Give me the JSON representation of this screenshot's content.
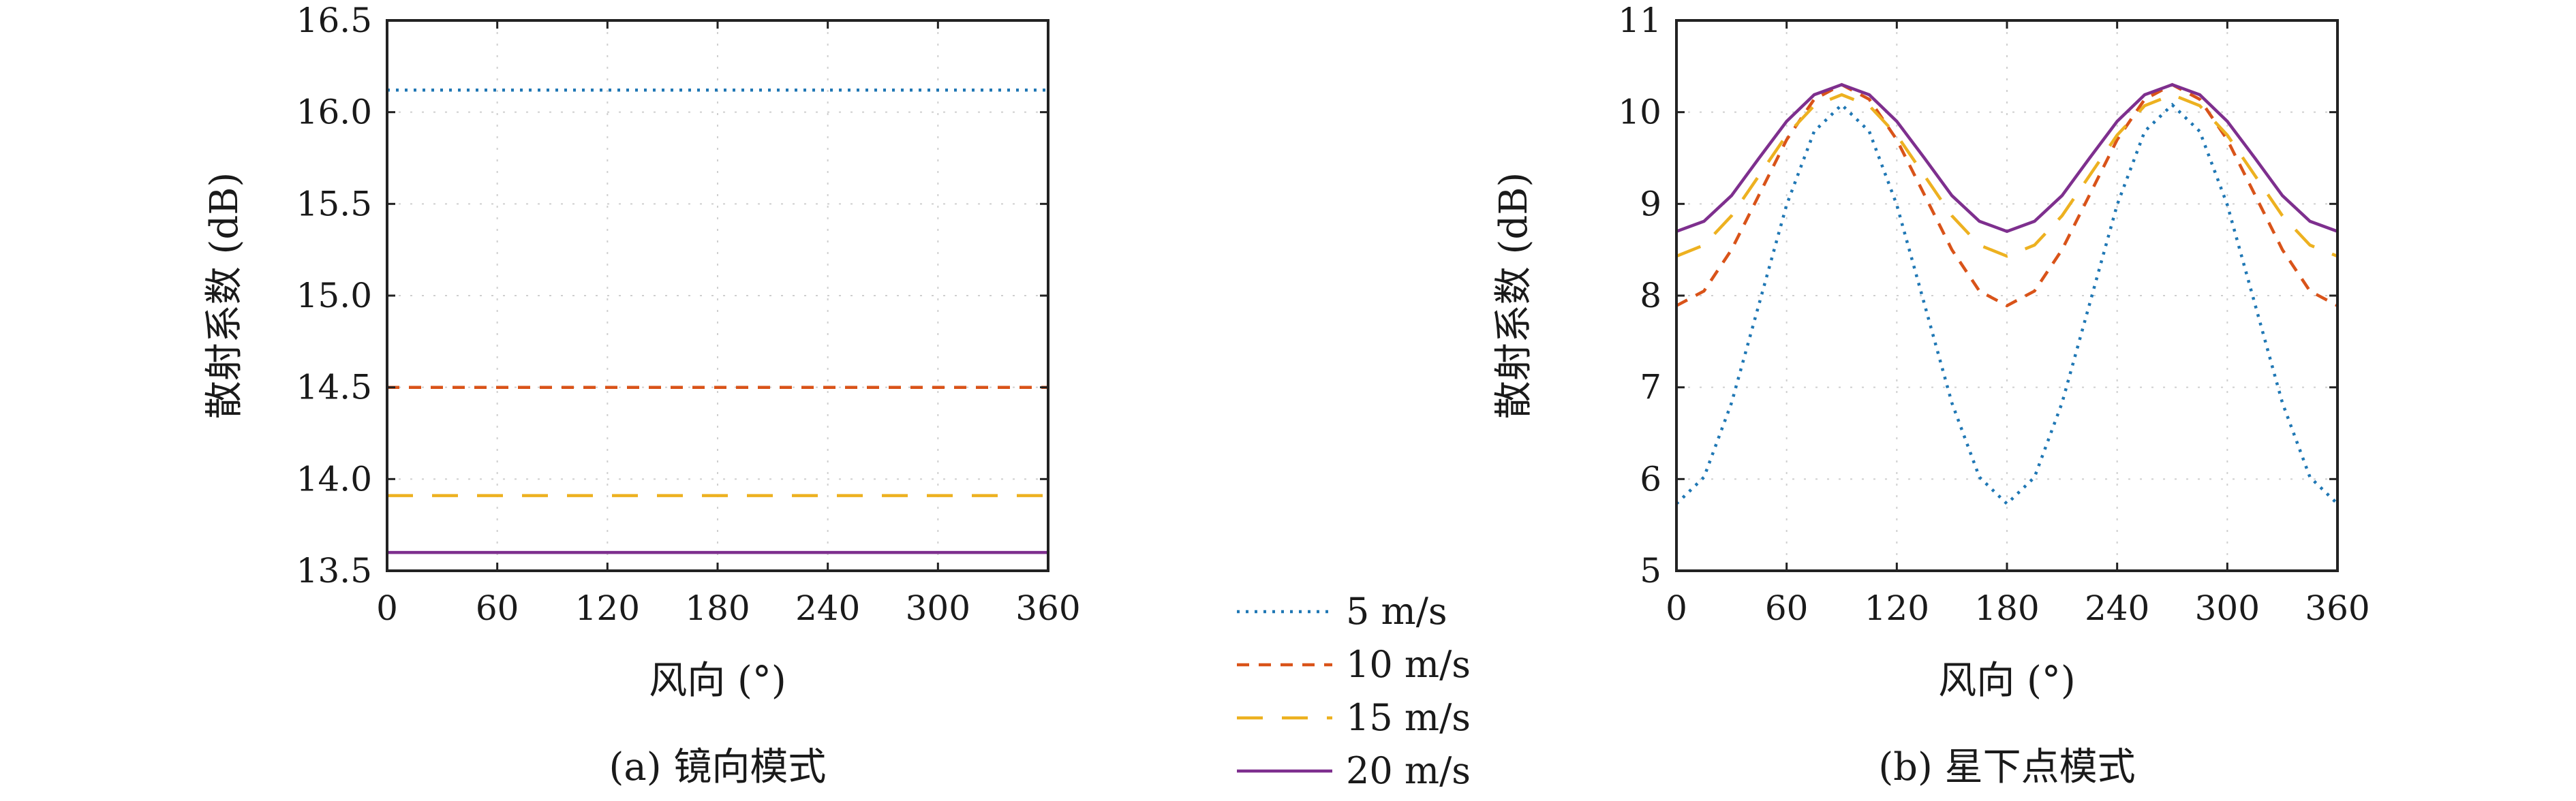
{
  "chart_data": [
    {
      "type": "line",
      "caption": "(a) 镜向模式",
      "xlabel": "风向 (°)",
      "ylabel": "散射系数 (dB)",
      "xlim": [
        0,
        360
      ],
      "ylim": [
        13.5,
        16.5
      ],
      "xticks": [
        0,
        60,
        120,
        180,
        240,
        300,
        360
      ],
      "yticks": [
        13.5,
        14.0,
        14.5,
        15.0,
        15.5,
        16.0,
        16.5
      ],
      "ytick_labels": [
        "13.5",
        "14.0",
        "14.5",
        "15.0",
        "15.5",
        "16.0",
        "16.5"
      ],
      "grid": true,
      "x": [
        0,
        90,
        180,
        270,
        360
      ],
      "series": [
        {
          "name": "5 m/s",
          "values": [
            16.12,
            16.12,
            16.12,
            16.12,
            16.12
          ]
        },
        {
          "name": "10 m/s",
          "values": [
            14.5,
            14.5,
            14.5,
            14.5,
            14.5
          ]
        },
        {
          "name": "15 m/s",
          "values": [
            13.91,
            13.91,
            13.91,
            13.91,
            13.91
          ]
        },
        {
          "name": "20 m/s",
          "values": [
            13.6,
            13.6,
            13.6,
            13.6,
            13.6
          ]
        }
      ]
    },
    {
      "type": "line",
      "caption": "(b) 星下点模式",
      "xlabel": "风向 (°)",
      "ylabel": "散射系数 (dB)",
      "xlim": [
        0,
        360
      ],
      "ylim": [
        5,
        11
      ],
      "xticks": [
        0,
        60,
        120,
        180,
        240,
        300,
        360
      ],
      "yticks": [
        5,
        6,
        7,
        8,
        9,
        10,
        11
      ],
      "ytick_labels": [
        "5",
        "6",
        "7",
        "8",
        "9",
        "10",
        "11"
      ],
      "grid": true,
      "x": [
        0,
        15,
        30,
        45,
        60,
        75,
        90,
        105,
        120,
        135,
        150,
        165,
        180,
        195,
        210,
        225,
        240,
        255,
        270,
        285,
        300,
        315,
        330,
        345,
        360
      ],
      "series": [
        {
          "name": "5 m/s",
          "values": [
            5.73,
            6.02,
            6.83,
            7.91,
            8.99,
            9.79,
            10.08,
            9.79,
            8.99,
            7.91,
            6.83,
            6.02,
            5.73,
            6.02,
            6.83,
            7.91,
            8.99,
            9.79,
            10.08,
            9.79,
            8.99,
            7.91,
            6.83,
            6.02,
            5.73
          ]
        },
        {
          "name": "10 m/s",
          "values": [
            7.89,
            8.05,
            8.5,
            9.1,
            9.7,
            10.14,
            10.3,
            10.14,
            9.7,
            9.1,
            8.5,
            8.05,
            7.89,
            8.05,
            8.5,
            9.1,
            9.7,
            10.14,
            10.3,
            10.14,
            9.7,
            9.1,
            8.5,
            8.05,
            7.89
          ]
        },
        {
          "name": "15 m/s",
          "values": [
            8.43,
            8.55,
            8.87,
            9.31,
            9.75,
            10.07,
            10.19,
            10.07,
            9.75,
            9.31,
            8.87,
            8.55,
            8.43,
            8.55,
            8.87,
            9.31,
            9.75,
            10.07,
            10.19,
            10.07,
            9.75,
            9.31,
            8.87,
            8.55,
            8.43
          ]
        },
        {
          "name": "20 m/s",
          "values": [
            8.7,
            8.81,
            9.09,
            9.5,
            9.9,
            10.19,
            10.3,
            10.19,
            9.9,
            9.5,
            9.09,
            8.81,
            8.7,
            8.81,
            9.09,
            9.5,
            9.9,
            10.19,
            10.3,
            10.19,
            9.9,
            9.5,
            9.09,
            8.81,
            8.7
          ]
        }
      ]
    }
  ],
  "legend": {
    "placement": "bottom-center",
    "items": [
      {
        "label": "5 m/s",
        "color": "#1f77b4",
        "dash": "dotted"
      },
      {
        "label": "10 m/s",
        "color": "#d95319",
        "dash": "dashed"
      },
      {
        "label": "15 m/s",
        "color": "#edb120",
        "dash": "long-dash"
      },
      {
        "label": "20 m/s",
        "color": "#7e2f8e",
        "dash": "solid"
      }
    ]
  }
}
